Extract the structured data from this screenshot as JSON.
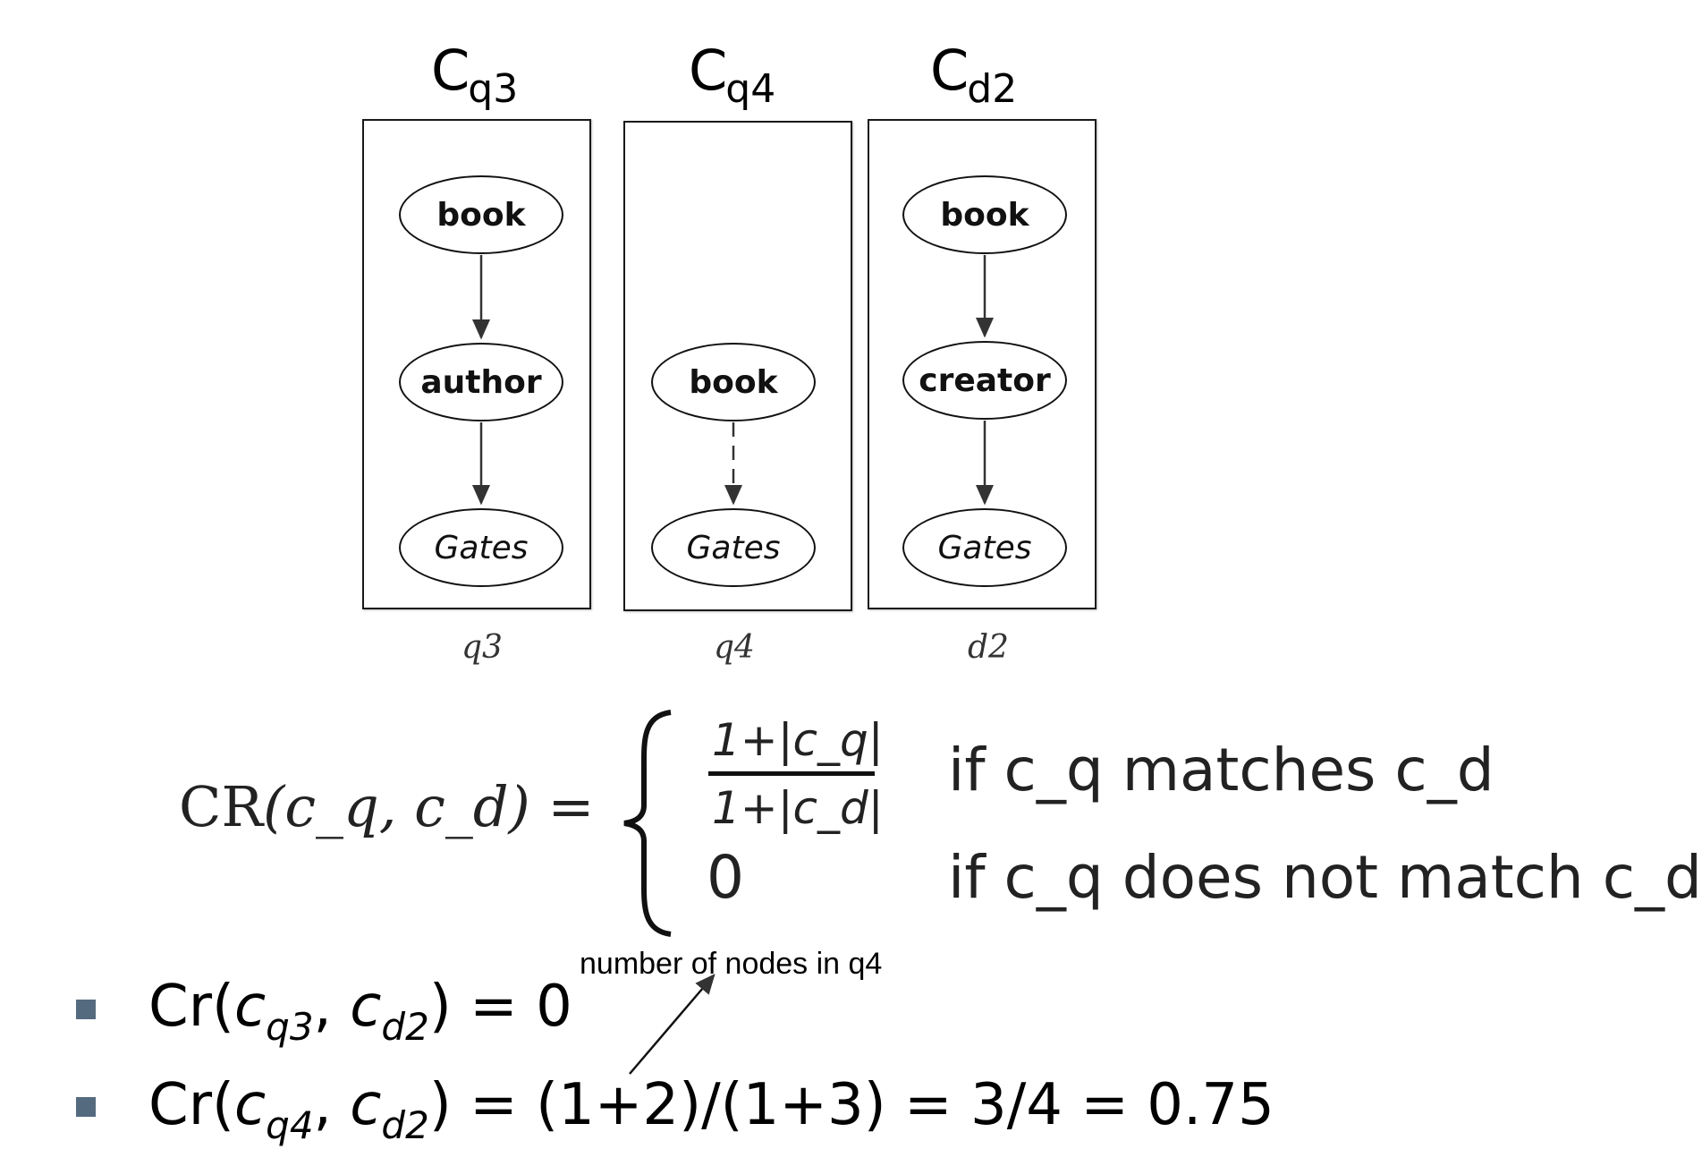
{
  "columns": [
    {
      "title_main": "C",
      "title_sub": "q3",
      "caption": "q3",
      "nodes": [
        "book",
        "author",
        "Gates"
      ]
    },
    {
      "title_main": "C",
      "title_sub": "q4",
      "caption": "q4",
      "nodes": [
        "book",
        "Gates"
      ]
    },
    {
      "title_main": "C",
      "title_sub": "d2",
      "caption": "d2",
      "nodes": [
        "book",
        "creator",
        "Gates"
      ]
    }
  ],
  "formula": {
    "lhs_fn": "CR",
    "lhs_args": "(c_q, c_d) =",
    "num": "1+|c_q|",
    "den": "1+|c_d|",
    "zero": "0",
    "case1": "if c_q matches c_d",
    "case2": "if c_q does not match c_d"
  },
  "annotation": "number of nodes in q4",
  "bullets": [
    {
      "pre": "Cr(",
      "a": "c",
      "a_sub": "q3",
      "sep": ", ",
      "b": "c",
      "b_sub": "d2",
      "post": ") = 0"
    },
    {
      "pre": "Cr(",
      "a": "c",
      "a_sub": "q4",
      "sep": ", ",
      "b": "c",
      "b_sub": "d2",
      "post": ") = (1+2)/(1+3) = 3/4 = 0.75"
    }
  ]
}
